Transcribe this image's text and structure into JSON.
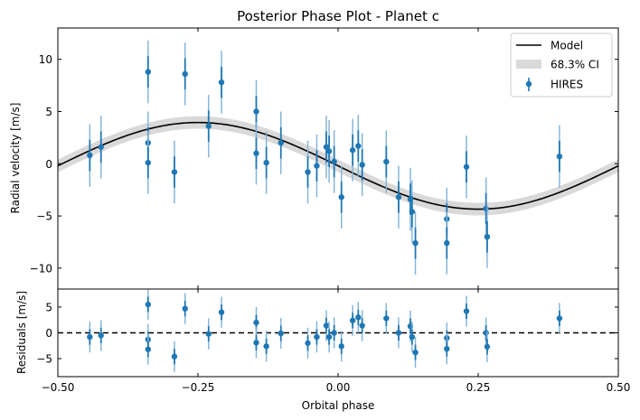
{
  "chart_data": [
    {
      "type": "scatter",
      "panel": "main",
      "title": "Posterior Phase Plot - Planet c",
      "xlabel": "",
      "ylabel": "Radial velocity [m/s]",
      "xlim": [
        -0.5,
        0.5
      ],
      "ylim": [
        -12.0,
        13.0
      ],
      "yticks": [
        10,
        5,
        0,
        -5,
        -10
      ],
      "ytick_labels": [
        "10",
        "5",
        "0",
        "−5",
        "−10"
      ],
      "legend": {
        "position": "top-right",
        "entries": [
          "Model",
          "68.3% CI",
          "HIRES"
        ]
      },
      "model": {
        "name": "Model",
        "amplitude": 4.15,
        "offset": -0.2,
        "peak_phase": -0.25,
        "ci_halfwidth": 0.6
      },
      "series": [
        {
          "name": "HIRES",
          "color": "#1f77b4",
          "x": [
            -0.443,
            -0.423,
            -0.339,
            -0.339,
            -0.339,
            -0.292,
            -0.273,
            -0.231,
            -0.208,
            -0.146,
            -0.146,
            -0.128,
            -0.102,
            -0.054,
            -0.038,
            -0.021,
            -0.016,
            -0.007,
            0.006,
            0.026,
            0.036,
            0.043,
            0.086,
            0.108,
            0.129,
            0.132,
            0.138,
            0.194,
            0.194,
            0.229,
            0.264,
            0.266,
            0.395
          ],
          "y": [
            0.8,
            1.6,
            8.8,
            2.0,
            0.1,
            -0.8,
            8.6,
            3.6,
            7.8,
            5.0,
            1.0,
            0.1,
            2.0,
            -0.8,
            -0.2,
            1.6,
            1.2,
            0.2,
            -3.2,
            1.3,
            1.7,
            -0.1,
            0.2,
            -3.2,
            -3.4,
            -4.6,
            -7.6,
            -5.3,
            -7.6,
            -0.3,
            -4.3,
            -7.0,
            0.7
          ],
          "err": [
            3.0,
            3.0,
            3.0,
            3.0,
            3.0,
            3.0,
            3.0,
            3.0,
            3.0,
            3.0,
            3.0,
            3.0,
            3.0,
            3.0,
            3.0,
            3.0,
            3.0,
            3.0,
            3.0,
            3.0,
            3.0,
            3.0,
            3.0,
            3.0,
            3.0,
            3.0,
            3.0,
            3.0,
            3.0,
            3.0,
            3.0,
            3.0,
            3.0
          ]
        }
      ]
    },
    {
      "type": "scatter",
      "panel": "residuals",
      "xlabel": "Orbital phase",
      "ylabel": "Residuals [m/s]",
      "xlim": [
        -0.5,
        0.5
      ],
      "ylim": [
        -8.5,
        8.5
      ],
      "xticks": [
        -0.5,
        -0.25,
        0.0,
        0.25,
        0.5
      ],
      "xtick_labels": [
        "−0.50",
        "−0.25",
        "0.00",
        "0.25",
        "0.50"
      ],
      "yticks": [
        5,
        0,
        -5
      ],
      "ytick_labels": [
        "5",
        "0",
        "−5"
      ],
      "series": [
        {
          "name": "HIRES",
          "color": "#1f77b4",
          "x": [
            -0.443,
            -0.423,
            -0.339,
            -0.339,
            -0.339,
            -0.292,
            -0.273,
            -0.231,
            -0.208,
            -0.146,
            -0.146,
            -0.128,
            -0.102,
            -0.054,
            -0.038,
            -0.021,
            -0.016,
            -0.007,
            0.006,
            0.026,
            0.036,
            0.043,
            0.086,
            0.108,
            0.129,
            0.132,
            0.138,
            0.194,
            0.194,
            0.229,
            0.264,
            0.266,
            0.395
          ],
          "y": [
            -0.8,
            -0.5,
            5.5,
            -1.3,
            -3.2,
            -4.6,
            4.7,
            -0.2,
            4.0,
            2.0,
            -1.9,
            -2.6,
            -0.1,
            -2.0,
            -0.8,
            1.4,
            -0.8,
            0.0,
            -2.6,
            2.4,
            3.0,
            1.4,
            2.8,
            0.0,
            1.3,
            -0.8,
            -3.8,
            -1.0,
            -3.1,
            4.2,
            0.0,
            -2.7,
            2.8
          ],
          "err": [
            3.0,
            3.0,
            3.0,
            3.0,
            3.0,
            3.0,
            3.0,
            3.0,
            3.0,
            3.0,
            3.0,
            3.0,
            3.0,
            3.0,
            3.0,
            3.0,
            3.0,
            3.0,
            3.0,
            3.0,
            3.0,
            3.0,
            3.0,
            3.0,
            3.0,
            3.0,
            3.0,
            3.0,
            3.0,
            3.0,
            3.0,
            3.0,
            3.0
          ]
        }
      ],
      "zero_line": 0
    }
  ],
  "colors": {
    "points": "#1f77b4",
    "error_outer": "#7fb2d9",
    "ci_band": "#d9d9d9",
    "model_line": "#000000",
    "zero_line": "#000000"
  }
}
